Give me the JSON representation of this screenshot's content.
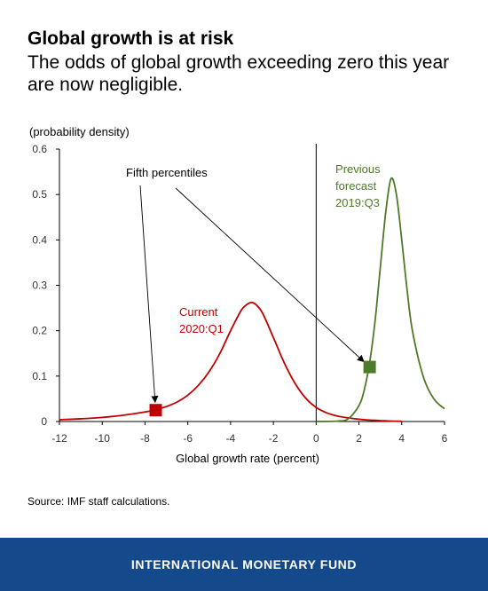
{
  "header": {
    "title": "Global growth is at risk",
    "subtitle": "The odds of global growth exceeding zero this year are now negligible."
  },
  "source": "Source: IMF staff calculations.",
  "footer": {
    "org": "INTERNATIONAL MONETARY FUND"
  },
  "chart_data": {
    "type": "line",
    "ylabel": "(probability density)",
    "xlabel": "Global growth rate (percent)",
    "xlim": [
      -12,
      6
    ],
    "ylim": [
      0,
      0.6
    ],
    "xticks": [
      -12,
      -10,
      -8,
      -6,
      -4,
      -2,
      0,
      2,
      4,
      6
    ],
    "yticks": [
      0,
      0.1,
      0.2,
      0.3,
      0.4,
      0.5,
      0.6
    ],
    "grid": false,
    "vline_x": 0,
    "series": [
      {
        "name": "Current 2020:Q1",
        "label_lines": [
          "Current",
          "2020:Q1"
        ],
        "color": "#c00000",
        "x": [
          -12,
          -11,
          -10,
          -9,
          -8,
          -7.5,
          -7,
          -6.5,
          -6,
          -5.5,
          -5,
          -4.5,
          -4,
          -3.5,
          -3.2,
          -3,
          -2.8,
          -2.5,
          -2,
          -1.5,
          -1,
          -0.5,
          0,
          0.5,
          1,
          1.5,
          2,
          2.5,
          3,
          3.5,
          4
        ],
        "y": [
          0.004,
          0.006,
          0.009,
          0.014,
          0.021,
          0.026,
          0.033,
          0.043,
          0.058,
          0.08,
          0.11,
          0.15,
          0.2,
          0.245,
          0.259,
          0.262,
          0.257,
          0.238,
          0.185,
          0.13,
          0.085,
          0.052,
          0.031,
          0.019,
          0.012,
          0.008,
          0.005,
          0.003,
          0.002,
          0.001,
          0.0005
        ]
      },
      {
        "name": "Previous forecast 2019:Q3",
        "label_lines": [
          "Previous",
          "forecast",
          "2019:Q3"
        ],
        "color": "#4f7a28",
        "x": [
          0,
          1,
          1.5,
          2,
          2.25,
          2.5,
          2.75,
          3,
          3.25,
          3.5,
          3.75,
          4,
          4.25,
          4.5,
          5,
          5.5,
          6
        ],
        "y": [
          0,
          0.001,
          0.006,
          0.035,
          0.07,
          0.13,
          0.22,
          0.34,
          0.46,
          0.535,
          0.5,
          0.4,
          0.29,
          0.2,
          0.1,
          0.05,
          0.028
        ]
      }
    ],
    "annotation": {
      "text": "Fifth percentiles",
      "markers": [
        {
          "series": "Current 2020:Q1",
          "x": -7.5,
          "y": 0.025
        },
        {
          "series": "Previous forecast 2019:Q3",
          "x": 2.5,
          "y": 0.12
        }
      ]
    }
  }
}
